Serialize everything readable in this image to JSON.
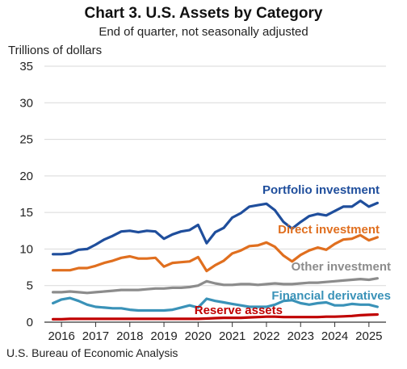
{
  "chart_data": {
    "type": "line",
    "title": "Chart 3. U.S. Assets by Category",
    "subtitle": "End of quarter, not seasonally adjusted",
    "ylabel": "Trillions of dollars",
    "xlabel": "",
    "source": "U.S. Bureau of Economic Analysis",
    "ylim": [
      0,
      35
    ],
    "yticks": [
      0,
      5,
      10,
      15,
      20,
      25,
      30,
      35
    ],
    "xticks": [
      "2016",
      "2017",
      "2018",
      "2019",
      "2020",
      "2021",
      "2022",
      "2023",
      "2024",
      "2025"
    ],
    "grid": "horizontal",
    "x": [
      "2015Q3",
      "2015Q4",
      "2016Q1",
      "2016Q2",
      "2016Q3",
      "2016Q4",
      "2017Q1",
      "2017Q2",
      "2017Q3",
      "2017Q4",
      "2018Q1",
      "2018Q2",
      "2018Q3",
      "2018Q4",
      "2019Q1",
      "2019Q2",
      "2019Q3",
      "2019Q4",
      "2020Q1",
      "2020Q2",
      "2020Q3",
      "2020Q4",
      "2021Q1",
      "2021Q2",
      "2021Q3",
      "2021Q4",
      "2022Q1",
      "2022Q2",
      "2022Q3",
      "2022Q4",
      "2023Q1",
      "2023Q2",
      "2023Q3",
      "2023Q4",
      "2024Q1",
      "2024Q2",
      "2024Q3",
      "2024Q4",
      "2025Q1"
    ],
    "series": [
      {
        "name": "Portfolio investment",
        "color": "#1f4e9c",
        "values": [
          9.3,
          9.3,
          9.4,
          9.9,
          10.0,
          10.6,
          11.3,
          11.8,
          12.4,
          12.5,
          12.3,
          12.5,
          12.4,
          11.4,
          12.0,
          12.4,
          12.6,
          13.3,
          10.8,
          12.3,
          12.9,
          14.3,
          14.9,
          15.8,
          16.0,
          16.2,
          15.3,
          13.7,
          12.8,
          13.7,
          14.5,
          14.8,
          14.6,
          15.2,
          15.8,
          15.8,
          16.6,
          15.8,
          16.3
        ]
      },
      {
        "name": "Direct investment",
        "color": "#e06f1f",
        "values": [
          7.1,
          7.1,
          7.1,
          7.4,
          7.4,
          7.7,
          8.1,
          8.4,
          8.8,
          9.0,
          8.7,
          8.7,
          8.8,
          7.6,
          8.1,
          8.2,
          8.3,
          8.9,
          7.0,
          7.8,
          8.4,
          9.4,
          9.8,
          10.4,
          10.5,
          10.9,
          10.3,
          9.1,
          8.3,
          9.2,
          9.8,
          10.2,
          9.9,
          10.7,
          11.3,
          11.4,
          11.9,
          11.2,
          11.6
        ]
      },
      {
        "name": "Other investment",
        "color": "#8c8c8c",
        "values": [
          4.1,
          4.1,
          4.2,
          4.1,
          4.0,
          4.1,
          4.2,
          4.3,
          4.4,
          4.4,
          4.4,
          4.5,
          4.6,
          4.6,
          4.7,
          4.7,
          4.8,
          5.0,
          5.6,
          5.3,
          5.1,
          5.1,
          5.2,
          5.2,
          5.1,
          5.2,
          5.3,
          5.2,
          5.2,
          5.3,
          5.4,
          5.4,
          5.5,
          5.6,
          5.7,
          5.8,
          5.9,
          5.8,
          6.0
        ]
      },
      {
        "name": "Financial derivatives",
        "color": "#3a92b8",
        "values": [
          2.6,
          3.1,
          3.3,
          2.9,
          2.4,
          2.1,
          2.0,
          1.9,
          1.9,
          1.7,
          1.6,
          1.6,
          1.6,
          1.6,
          1.7,
          2.0,
          2.3,
          2.0,
          3.2,
          2.9,
          2.7,
          2.5,
          2.3,
          2.1,
          2.1,
          2.1,
          2.4,
          2.9,
          3.0,
          2.6,
          2.4,
          2.6,
          2.7,
          2.3,
          2.3,
          2.5,
          2.4,
          2.4,
          2.1
        ]
      },
      {
        "name": "Reserve assets",
        "color": "#c00000",
        "values": [
          0.4,
          0.4,
          0.45,
          0.45,
          0.45,
          0.45,
          0.45,
          0.45,
          0.45,
          0.45,
          0.45,
          0.45,
          0.45,
          0.45,
          0.45,
          0.45,
          0.45,
          0.45,
          0.5,
          0.55,
          0.6,
          0.6,
          0.6,
          0.65,
          0.7,
          0.75,
          0.75,
          0.7,
          0.7,
          0.7,
          0.7,
          0.7,
          0.75,
          0.75,
          0.8,
          0.85,
          0.95,
          1.0,
          1.05
        ]
      }
    ]
  }
}
